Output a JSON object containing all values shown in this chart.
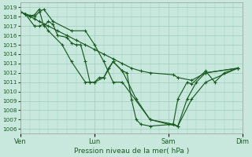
{
  "bg_color": "#c8e8de",
  "grid_color": "#a0ccbb",
  "line_color": "#1a5c22",
  "ylim": [
    1005.5,
    1019.5
  ],
  "yticks": [
    1006,
    1007,
    1008,
    1009,
    1010,
    1011,
    1012,
    1013,
    1014,
    1015,
    1016,
    1017,
    1018,
    1019
  ],
  "xlabel": "Pression niveau de la mer( hPa )",
  "xlim": [
    0,
    24
  ],
  "day_ticks": [
    0,
    8,
    16,
    24
  ],
  "day_labels": [
    "Ven",
    "Lun",
    "Sam",
    "Dim"
  ],
  "series": [
    {
      "x": [
        0,
        0.5,
        1.0,
        1.5,
        2.0,
        2.5,
        3.0,
        3.5,
        4.0,
        5.0,
        5.5,
        6.0,
        6.5,
        7.0,
        7.5,
        8.0,
        8.5,
        9.0,
        9.5,
        10.0,
        11.0,
        11.5,
        12.0,
        12.5,
        13.0,
        14.0,
        16.5,
        17.0,
        18.0,
        18.5,
        20.0,
        21.0,
        22.0,
        23.5
      ],
      "y": [
        1018.5,
        1018.3,
        1018.1,
        1018.2,
        1018.8,
        1017.0,
        1017.5,
        1017.2,
        1016.0,
        1015.8,
        1015.2,
        1015.0,
        1015.0,
        1013.2,
        1011.0,
        1011.0,
        1011.5,
        1011.5,
        1012.5,
        1013.2,
        1012.2,
        1012.0,
        1009.1,
        1007.0,
        1006.5,
        1006.3,
        1006.5,
        1009.2,
        1011.0,
        1010.8,
        1012.2,
        1011.0,
        1012.0,
        1012.5
      ]
    },
    {
      "x": [
        0,
        0.5,
        1.0,
        1.5,
        2.0,
        3.0,
        4.0,
        5.0,
        6.0,
        7.0,
        8.0,
        9.0,
        10.0,
        11.0,
        12.0,
        13.0,
        14.0,
        16.5,
        17.0,
        18.5,
        20.0,
        23.5
      ],
      "y": [
        1018.5,
        1018.3,
        1018.0,
        1017.8,
        1017.5,
        1017.0,
        1016.5,
        1016.0,
        1015.5,
        1015.0,
        1014.5,
        1014.0,
        1013.5,
        1013.0,
        1012.5,
        1012.2,
        1012.0,
        1011.8,
        1011.5,
        1011.2,
        1012.0,
        1012.5
      ]
    },
    {
      "x": [
        0,
        0.5,
        1.5,
        2.0,
        2.5,
        3.0,
        4.5,
        5.5,
        7.0,
        8.0,
        9.0,
        10.0,
        11.0,
        12.5,
        14.0,
        16.5,
        17.0,
        18.5,
        20.0,
        23.5
      ],
      "y": [
        1018.5,
        1018.3,
        1017.0,
        1017.0,
        1017.2,
        1016.5,
        1015.0,
        1013.2,
        1011.0,
        1011.0,
        1011.5,
        1013.2,
        1012.2,
        1009.2,
        1007.0,
        1006.5,
        1006.3,
        1009.2,
        1011.0,
        1012.5
      ]
    },
    {
      "x": [
        0,
        0.5,
        1.5,
        2.0,
        2.5,
        3.5,
        5.5,
        7.0,
        8.0,
        9.0,
        10.0,
        11.0,
        14.0,
        16.0,
        17.0,
        18.0,
        19.0,
        20.0,
        23.5
      ],
      "y": [
        1018.5,
        1018.3,
        1018.0,
        1018.5,
        1018.8,
        1017.5,
        1016.5,
        1016.5,
        1015.0,
        1013.2,
        1011.0,
        1011.0,
        1007.0,
        1006.5,
        1006.3,
        1009.2,
        1011.0,
        1012.0,
        1012.5
      ]
    }
  ],
  "marker": "+",
  "markersize": 3.5,
  "linewidth": 0.85,
  "ytick_fontsize": 5.2,
  "xtick_fontsize": 6.0,
  "xlabel_fontsize": 6.5
}
